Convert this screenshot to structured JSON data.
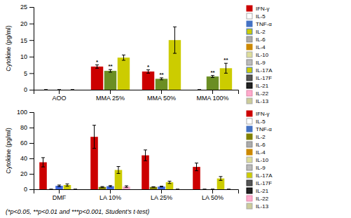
{
  "chart_data": [
    {
      "type": "bar",
      "ylabel": "Cytokine (pg/ml)",
      "categories": [
        "AOO",
        "MMA 25%",
        "MMA 50%",
        "MMA 100%"
      ],
      "series": [
        {
          "color": "#cc0000",
          "values": [
            0,
            7.0,
            5.5,
            0
          ],
          "errors": [
            0,
            0.5,
            0.5,
            0
          ],
          "significance": [
            null,
            "*",
            "*",
            null
          ]
        },
        {
          "color": "#6b8e23",
          "values": [
            0,
            5.7,
            3.3,
            4.0
          ],
          "errors": [
            0,
            0.4,
            0.3,
            0.3
          ],
          "significance": [
            null,
            "**",
            "**",
            "**"
          ]
        },
        {
          "color": "#cccc00",
          "values": [
            0,
            9.7,
            15.0,
            6.5
          ],
          "errors": [
            0,
            0.8,
            4.0,
            1.5
          ],
          "significance": [
            null,
            null,
            null,
            "**"
          ]
        }
      ],
      "ylim": [
        0,
        25
      ],
      "yticks": [
        0,
        5,
        10,
        15,
        20,
        25
      ],
      "legend_entries": [
        {
          "label": "IFN-γ",
          "color": "#cc0000",
          "edgecolor": "#cc0000"
        },
        {
          "label": "IL-5",
          "color": "#ffffff",
          "edgecolor": "#aaaaaa"
        },
        {
          "label": "TNF-α",
          "color": "#4472c4",
          "edgecolor": "#4472c4"
        },
        {
          "label": "IL-2",
          "color": "#cccc00",
          "edgecolor": "#4472c4"
        },
        {
          "label": "IL-6",
          "color": "#aaaaaa",
          "edgecolor": "#888888"
        },
        {
          "label": "IL-4",
          "color": "#cc8800",
          "edgecolor": "#cc8800"
        },
        {
          "label": "IL-10",
          "color": "#dddd99",
          "edgecolor": "#aaaaaa"
        },
        {
          "label": "IL-9",
          "color": "#bbbbbb",
          "edgecolor": "#888888"
        },
        {
          "label": "IL-17A",
          "color": "#cccc00",
          "edgecolor": "#4472c4"
        },
        {
          "label": "IL-17F",
          "color": "#555555",
          "edgecolor": "#333333"
        },
        {
          "label": "IL-21",
          "color": "#222222",
          "edgecolor": "#000000"
        },
        {
          "label": "IL-22",
          "color": "#ffaacc",
          "edgecolor": "#dd88aa"
        },
        {
          "label": "IL-13",
          "color": "#cccc99",
          "edgecolor": "#aaaaaa"
        }
      ]
    },
    {
      "type": "bar",
      "ylabel": "Cytokine (pg/ml)",
      "categories": [
        "DMF",
        "LA 10%",
        "LA 25%",
        "LA 50%"
      ],
      "series": [
        {
          "color": "#cc0000",
          "values": [
            35,
            68,
            44,
            29
          ],
          "errors": [
            6.0,
            15,
            7.0,
            5.0
          ]
        },
        {
          "color": "#808000",
          "values": [
            0,
            3.0,
            3.0,
            0
          ],
          "errors": [
            0,
            0.5,
            0.3,
            0
          ]
        },
        {
          "color": "#4169e1",
          "values": [
            4.5,
            4.0,
            3.5,
            0
          ],
          "errors": [
            1.0,
            0.8,
            0.5,
            0
          ]
        },
        {
          "color": "#cccc00",
          "values": [
            5.5,
            25,
            9,
            14
          ],
          "errors": [
            1.5,
            4.5,
            1.5,
            2.5
          ]
        },
        {
          "color": "#ffaacc",
          "values": [
            0,
            3.5,
            0,
            0
          ],
          "errors": [
            0,
            1.0,
            0,
            0
          ]
        }
      ],
      "ylim": [
        0,
        100
      ],
      "yticks": [
        0,
        20,
        40,
        60,
        80,
        100
      ],
      "legend_entries": [
        {
          "label": "IFN-γ",
          "color": "#cc0000",
          "edgecolor": "#cc0000"
        },
        {
          "label": "IL-5",
          "color": "#ffffff",
          "edgecolor": "#aaaaaa"
        },
        {
          "label": "TNF-α",
          "color": "#4472c4",
          "edgecolor": "#4472c4"
        },
        {
          "label": "IL-2",
          "color": "#808000",
          "edgecolor": "#808000"
        },
        {
          "label": "IL-6",
          "color": "#aaaaaa",
          "edgecolor": "#888888"
        },
        {
          "label": "IL-4",
          "color": "#cc8800",
          "edgecolor": "#cc8800"
        },
        {
          "label": "IL-10",
          "color": "#dddd99",
          "edgecolor": "#aaaaaa"
        },
        {
          "label": "IL-9",
          "color": "#bbbbbb",
          "edgecolor": "#888888"
        },
        {
          "label": "IL-17A",
          "color": "#cccc00",
          "edgecolor": "#aaaaaa"
        },
        {
          "label": "IL-17F",
          "color": "#555555",
          "edgecolor": "#333333"
        },
        {
          "label": "IL-21",
          "color": "#222222",
          "edgecolor": "#000000"
        },
        {
          "label": "IL-22",
          "color": "#ffaacc",
          "edgecolor": "#dd88aa"
        },
        {
          "label": "IL-13",
          "color": "#cccc99",
          "edgecolor": "#aaaaaa"
        }
      ]
    }
  ],
  "footer": "(*p<0.05, **p<0.01 and ***p<0.001, Student’s t-test)"
}
